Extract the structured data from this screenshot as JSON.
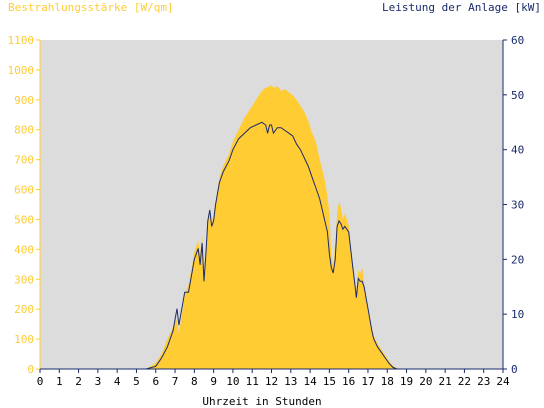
{
  "chart_data": {
    "type": "area",
    "left_axis_label": "Bestrahlungsstärke [W/qm]",
    "right_axis_label": "Leistung der Anlage [kW]",
    "xlabel": "Uhrzeit in Stunden",
    "x_ticks": [
      "0",
      "1",
      "2",
      "3",
      "4",
      "5",
      "6",
      "7",
      "8",
      "9",
      "10",
      "11",
      "12",
      "13",
      "14",
      "15",
      "16",
      "17",
      "18",
      "19",
      "20",
      "21",
      "22",
      "23",
      "24"
    ],
    "left_ticks": [
      "0",
      "100",
      "200",
      "300",
      "400",
      "500",
      "600",
      "700",
      "800",
      "900",
      "1000",
      "1100"
    ],
    "right_ticks": [
      "0",
      "10",
      "20",
      "30",
      "40",
      "50",
      "60"
    ],
    "xlim": [
      0,
      24
    ],
    "ylim_left": [
      0,
      1100
    ],
    "ylim_right": [
      0,
      60
    ],
    "grid": false,
    "colors": {
      "irradiance": "#ffcc33",
      "power": "#1a2a6c",
      "plot_bg": "#dcdcdc",
      "left_axis": "#ffcc33",
      "right_axis": "#1a2a6c"
    },
    "series": [
      {
        "axis": "left",
        "x": [
          5.5,
          6.0,
          6.3,
          6.6,
          6.9,
          7.0,
          7.1,
          7.2,
          7.4,
          7.5,
          7.7,
          7.9,
          8.0,
          8.2,
          8.3,
          8.4,
          8.5,
          8.6,
          8.7,
          8.8,
          8.9,
          9.0,
          9.1,
          9.3,
          9.5,
          9.8,
          10.0,
          10.3,
          10.6,
          10.9,
          11.2,
          11.5,
          11.7,
          11.9,
          12.0,
          12.1,
          12.3,
          12.5,
          12.7,
          12.9,
          13.1,
          13.3,
          13.5,
          13.7,
          13.9,
          14.1,
          14.3,
          14.5,
          14.7,
          14.9,
          15.0,
          15.1,
          15.2,
          15.3,
          15.4,
          15.5,
          15.6,
          15.7,
          15.8,
          16.0,
          16.1,
          16.2,
          16.3,
          16.4,
          16.5,
          16.6,
          16.7,
          16.8,
          16.9,
          17.0,
          17.1,
          17.2,
          17.3,
          17.5,
          17.7,
          17.9,
          18.1,
          18.3,
          18.5,
          18.7,
          18.9,
          19.1,
          19.3
        ],
        "y": [
          0,
          20,
          50,
          100,
          140,
          170,
          160,
          120,
          200,
          250,
          280,
          350,
          390,
          430,
          380,
          450,
          320,
          400,
          500,
          540,
          480,
          520,
          560,
          640,
          680,
          720,
          760,
          800,
          840,
          870,
          900,
          930,
          940,
          945,
          950,
          940,
          945,
          930,
          935,
          925,
          915,
          900,
          880,
          860,
          830,
          790,
          760,
          700,
          650,
          580,
          520,
          380,
          340,
          420,
          520,
          560,
          540,
          500,
          520,
          480,
          410,
          350,
          300,
          260,
          330,
          320,
          340,
          280,
          230,
          200,
          170,
          140,
          110,
          85,
          65,
          45,
          25,
          10,
          3,
          0,
          0,
          0,
          0
        ]
      },
      {
        "axis": "right",
        "x": [
          5.5,
          6.0,
          6.3,
          6.6,
          6.9,
          7.0,
          7.1,
          7.2,
          7.4,
          7.5,
          7.7,
          7.9,
          8.0,
          8.2,
          8.3,
          8.4,
          8.5,
          8.6,
          8.7,
          8.8,
          8.9,
          9.0,
          9.1,
          9.3,
          9.5,
          9.8,
          10.0,
          10.3,
          10.6,
          10.9,
          11.2,
          11.5,
          11.7,
          11.8,
          11.9,
          12.0,
          12.1,
          12.3,
          12.5,
          12.7,
          12.9,
          13.1,
          13.3,
          13.5,
          13.7,
          13.9,
          14.1,
          14.3,
          14.5,
          14.7,
          14.9,
          15.0,
          15.1,
          15.2,
          15.3,
          15.4,
          15.5,
          15.6,
          15.7,
          15.8,
          16.0,
          16.1,
          16.2,
          16.3,
          16.4,
          16.5,
          16.6,
          16.7,
          16.8,
          16.9,
          17.0,
          17.1,
          17.2,
          17.3,
          17.5,
          17.7,
          17.9,
          18.1,
          18.3,
          18.5,
          18.7,
          18.9,
          19.1
        ],
        "y": [
          0,
          0.5,
          2,
          4,
          7,
          9,
          11,
          8,
          12,
          14,
          14,
          18,
          20,
          22,
          19,
          23,
          16,
          21,
          27,
          29,
          26,
          27,
          30,
          34,
          36,
          38,
          40,
          42,
          43,
          44,
          44.5,
          45,
          44.5,
          43,
          44.5,
          44.5,
          43,
          44,
          44,
          43.5,
          43,
          42.5,
          41,
          40,
          38.5,
          37,
          35,
          33,
          31,
          28,
          25,
          21,
          18.5,
          17.5,
          20,
          26,
          27,
          26.5,
          25.5,
          26,
          25,
          22,
          19,
          16,
          13,
          16.5,
          16,
          16,
          15,
          13,
          11,
          9,
          7,
          5.5,
          4,
          3,
          2,
          1,
          0.3,
          0,
          0,
          0,
          0
        ]
      }
    ]
  }
}
